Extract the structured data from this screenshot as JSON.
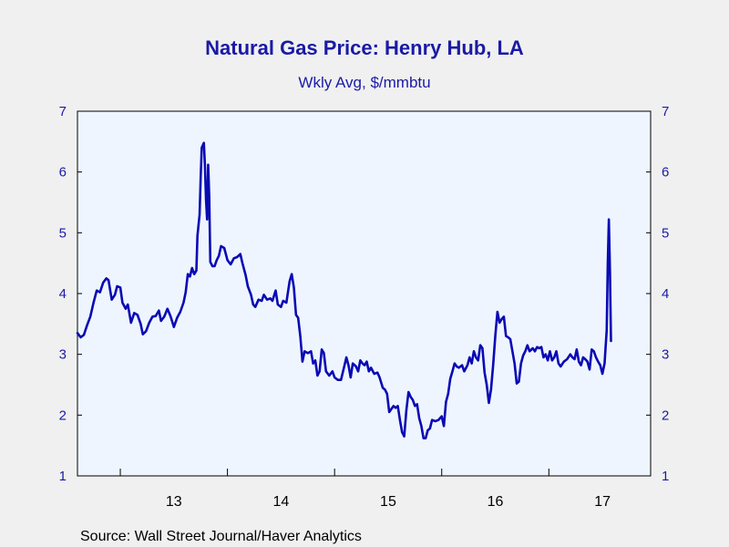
{
  "chart_data": {
    "type": "line",
    "title": "Natural Gas Price: Henry Hub, LA",
    "subtitle": "Wkly Avg, $/mmbtu",
    "source": "Source:  Wall Street Journal/Haver Analytics",
    "ylim": [
      1,
      7
    ],
    "y_ticks": [
      1,
      2,
      3,
      4,
      5,
      6,
      7
    ],
    "y_ticks_right": [
      1,
      2,
      3,
      4,
      5,
      6,
      7
    ],
    "xlim": [
      2012.6,
      2017.95
    ],
    "x_ticks": [
      2013,
      2014,
      2015,
      2016,
      2017,
      2018
    ],
    "x_labels": [
      {
        "label": "13",
        "x": 2013.5
      },
      {
        "label": "14",
        "x": 2014.5
      },
      {
        "label": "15",
        "x": 2015.5
      },
      {
        "label": "16",
        "x": 2016.5
      },
      {
        "label": "17",
        "x": 2017.5
      }
    ],
    "grid": false,
    "line_color": "#0a0ab4",
    "plot_bg": "#eef5ff",
    "series": [
      {
        "values": [
          [
            2012.6,
            3.35
          ],
          [
            2012.63,
            3.28
          ],
          [
            2012.66,
            3.32
          ],
          [
            2012.69,
            3.48
          ],
          [
            2012.72,
            3.62
          ],
          [
            2012.75,
            3.85
          ],
          [
            2012.78,
            4.05
          ],
          [
            2012.81,
            4.02
          ],
          [
            2012.84,
            4.18
          ],
          [
            2012.87,
            4.25
          ],
          [
            2012.89,
            4.22
          ],
          [
            2012.92,
            3.9
          ],
          [
            2012.95,
            3.98
          ],
          [
            2012.97,
            4.12
          ],
          [
            2013.0,
            4.1
          ],
          [
            2013.02,
            3.85
          ],
          [
            2013.05,
            3.75
          ],
          [
            2013.07,
            3.82
          ],
          [
            2013.1,
            3.52
          ],
          [
            2013.13,
            3.68
          ],
          [
            2013.16,
            3.65
          ],
          [
            2013.19,
            3.5
          ],
          [
            2013.21,
            3.33
          ],
          [
            2013.24,
            3.38
          ],
          [
            2013.27,
            3.52
          ],
          [
            2013.3,
            3.62
          ],
          [
            2013.33,
            3.63
          ],
          [
            2013.36,
            3.72
          ],
          [
            2013.38,
            3.55
          ],
          [
            2013.41,
            3.62
          ],
          [
            2013.44,
            3.75
          ],
          [
            2013.47,
            3.62
          ],
          [
            2013.5,
            3.45
          ],
          [
            2013.53,
            3.6
          ],
          [
            2013.56,
            3.7
          ],
          [
            2013.59,
            3.85
          ],
          [
            2013.61,
            4.02
          ],
          [
            2013.63,
            4.32
          ],
          [
            2013.65,
            4.28
          ],
          [
            2013.67,
            4.42
          ],
          [
            2013.69,
            4.32
          ],
          [
            2013.71,
            4.38
          ],
          [
            2013.72,
            4.95
          ],
          [
            2013.74,
            5.3
          ],
          [
            2013.75,
            5.9
          ],
          [
            2013.76,
            6.4
          ],
          [
            2013.78,
            6.48
          ],
          [
            2013.79,
            6.1
          ],
          [
            2013.8,
            5.55
          ],
          [
            2013.81,
            5.22
          ],
          [
            2013.82,
            6.12
          ],
          [
            2013.83,
            5.6
          ],
          [
            2013.84,
            4.52
          ],
          [
            2013.86,
            4.45
          ],
          [
            2013.88,
            4.45
          ],
          [
            2013.9,
            4.55
          ],
          [
            2013.92,
            4.62
          ],
          [
            2013.94,
            4.78
          ],
          [
            2013.97,
            4.75
          ],
          [
            2014.0,
            4.55
          ],
          [
            2014.03,
            4.48
          ],
          [
            2014.06,
            4.58
          ],
          [
            2014.09,
            4.6
          ],
          [
            2014.12,
            4.65
          ],
          [
            2014.14,
            4.5
          ],
          [
            2014.17,
            4.3
          ],
          [
            2014.19,
            4.12
          ],
          [
            2014.22,
            3.98
          ],
          [
            2014.24,
            3.82
          ],
          [
            2014.26,
            3.78
          ],
          [
            2014.29,
            3.9
          ],
          [
            2014.32,
            3.88
          ],
          [
            2014.34,
            3.98
          ],
          [
            2014.37,
            3.9
          ],
          [
            2014.4,
            3.92
          ],
          [
            2014.42,
            3.88
          ],
          [
            2014.45,
            4.05
          ],
          [
            2014.47,
            3.82
          ],
          [
            2014.5,
            3.78
          ],
          [
            2014.52,
            3.88
          ],
          [
            2014.55,
            3.85
          ],
          [
            2014.58,
            4.2
          ],
          [
            2014.6,
            4.32
          ],
          [
            2014.62,
            4.1
          ],
          [
            2014.64,
            3.65
          ],
          [
            2014.66,
            3.6
          ],
          [
            2014.68,
            3.3
          ],
          [
            2014.7,
            2.88
          ],
          [
            2014.72,
            3.05
          ],
          [
            2014.75,
            3.02
          ],
          [
            2014.78,
            3.05
          ],
          [
            2014.8,
            2.85
          ],
          [
            2014.82,
            2.9
          ],
          [
            2014.84,
            2.65
          ],
          [
            2014.86,
            2.72
          ],
          [
            2014.88,
            3.08
          ],
          [
            2014.9,
            3.02
          ],
          [
            2014.92,
            2.72
          ],
          [
            2014.95,
            2.65
          ],
          [
            2014.98,
            2.72
          ],
          [
            2015.0,
            2.62
          ],
          [
            2015.03,
            2.58
          ],
          [
            2015.06,
            2.58
          ],
          [
            2015.09,
            2.8
          ],
          [
            2015.11,
            2.95
          ],
          [
            2015.13,
            2.82
          ],
          [
            2015.15,
            2.62
          ],
          [
            2015.17,
            2.85
          ],
          [
            2015.2,
            2.8
          ],
          [
            2015.22,
            2.72
          ],
          [
            2015.24,
            2.9
          ],
          [
            2015.26,
            2.85
          ],
          [
            2015.28,
            2.82
          ],
          [
            2015.3,
            2.88
          ],
          [
            2015.32,
            2.72
          ],
          [
            2015.34,
            2.78
          ],
          [
            2015.37,
            2.68
          ],
          [
            2015.4,
            2.7
          ],
          [
            2015.42,
            2.62
          ],
          [
            2015.45,
            2.45
          ],
          [
            2015.47,
            2.42
          ],
          [
            2015.49,
            2.35
          ],
          [
            2015.51,
            2.05
          ],
          [
            2015.53,
            2.1
          ],
          [
            2015.55,
            2.15
          ],
          [
            2015.57,
            2.12
          ],
          [
            2015.59,
            2.15
          ],
          [
            2015.61,
            1.92
          ],
          [
            2015.63,
            1.72
          ],
          [
            2015.65,
            1.65
          ],
          [
            2015.67,
            2.08
          ],
          [
            2015.69,
            2.38
          ],
          [
            2015.71,
            2.3
          ],
          [
            2015.73,
            2.25
          ],
          [
            2015.75,
            2.15
          ],
          [
            2015.77,
            2.18
          ],
          [
            2015.79,
            1.95
          ],
          [
            2015.81,
            1.82
          ],
          [
            2015.83,
            1.62
          ],
          [
            2015.85,
            1.62
          ],
          [
            2015.87,
            1.75
          ],
          [
            2015.89,
            1.78
          ],
          [
            2015.91,
            1.92
          ],
          [
            2015.94,
            1.9
          ],
          [
            2015.97,
            1.92
          ],
          [
            2016.0,
            1.98
          ],
          [
            2016.02,
            1.82
          ],
          [
            2016.04,
            2.22
          ],
          [
            2016.06,
            2.35
          ],
          [
            2016.08,
            2.6
          ],
          [
            2016.1,
            2.72
          ],
          [
            2016.12,
            2.85
          ],
          [
            2016.14,
            2.8
          ],
          [
            2016.16,
            2.78
          ],
          [
            2016.19,
            2.82
          ],
          [
            2016.21,
            2.72
          ],
          [
            2016.24,
            2.82
          ],
          [
            2016.26,
            2.95
          ],
          [
            2016.28,
            2.85
          ],
          [
            2016.3,
            3.05
          ],
          [
            2016.32,
            2.95
          ],
          [
            2016.34,
            2.9
          ],
          [
            2016.36,
            3.15
          ],
          [
            2016.38,
            3.1
          ],
          [
            2016.4,
            2.7
          ],
          [
            2016.42,
            2.5
          ],
          [
            2016.44,
            2.2
          ],
          [
            2016.46,
            2.42
          ],
          [
            2016.48,
            2.82
          ],
          [
            2016.5,
            3.3
          ],
          [
            2016.52,
            3.7
          ],
          [
            2016.54,
            3.52
          ],
          [
            2016.56,
            3.58
          ],
          [
            2016.58,
            3.62
          ],
          [
            2016.6,
            3.3
          ],
          [
            2016.62,
            3.28
          ],
          [
            2016.64,
            3.25
          ],
          [
            2016.66,
            3.05
          ],
          [
            2016.68,
            2.85
          ],
          [
            2016.7,
            2.52
          ],
          [
            2016.72,
            2.55
          ],
          [
            2016.74,
            2.85
          ],
          [
            2016.76,
            2.98
          ],
          [
            2016.78,
            3.05
          ],
          [
            2016.8,
            3.15
          ],
          [
            2016.82,
            3.05
          ],
          [
            2016.85,
            3.1
          ],
          [
            2016.87,
            3.05
          ],
          [
            2016.89,
            3.12
          ],
          [
            2016.91,
            3.1
          ],
          [
            2016.93,
            3.12
          ],
          [
            2016.95,
            2.95
          ],
          [
            2016.97,
            3.0
          ],
          [
            2016.99,
            2.9
          ],
          [
            2017.01,
            3.05
          ],
          [
            2017.03,
            2.9
          ],
          [
            2017.05,
            2.95
          ],
          [
            2017.07,
            3.05
          ],
          [
            2017.09,
            2.85
          ],
          [
            2017.11,
            2.8
          ],
          [
            2017.14,
            2.88
          ],
          [
            2017.17,
            2.92
          ],
          [
            2017.2,
            3.0
          ],
          [
            2017.22,
            2.95
          ],
          [
            2017.24,
            2.92
          ],
          [
            2017.26,
            3.08
          ],
          [
            2017.28,
            2.88
          ],
          [
            2017.3,
            2.82
          ],
          [
            2017.32,
            2.95
          ],
          [
            2017.34,
            2.92
          ],
          [
            2017.36,
            2.88
          ],
          [
            2017.38,
            2.75
          ],
          [
            2017.4,
            3.08
          ],
          [
            2017.42,
            3.05
          ],
          [
            2017.44,
            2.95
          ],
          [
            2017.46,
            2.88
          ],
          [
            2017.48,
            2.82
          ],
          [
            2017.5,
            2.68
          ],
          [
            2017.52,
            2.85
          ],
          [
            2017.54,
            3.4
          ],
          [
            2017.55,
            4.5
          ],
          [
            2017.56,
            5.22
          ],
          [
            2017.57,
            4.4
          ],
          [
            2017.58,
            3.22
          ]
        ]
      }
    ]
  }
}
